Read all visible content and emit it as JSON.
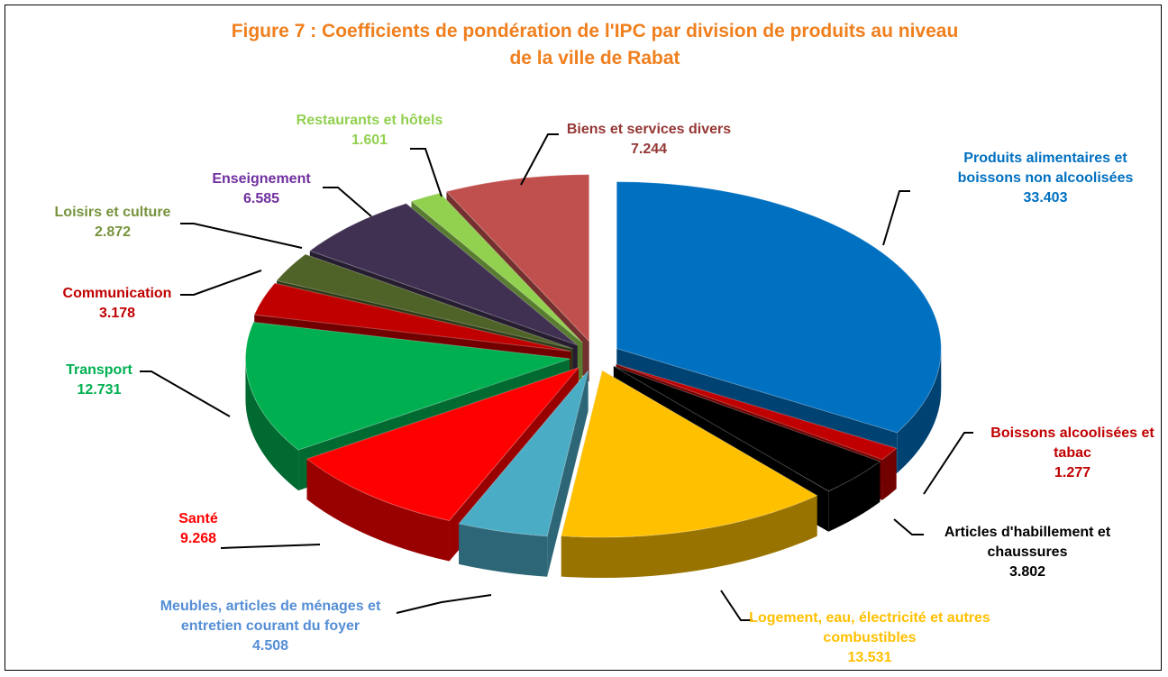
{
  "chart_data": {
    "type": "pie3d",
    "title": "Figure 7 : Coefficients de pondération de l'IPC par division de produits au niveau de la ville de Rabat",
    "categories": [
      "Produits alimentaires et boissons non alcoolisées",
      "Boissons alcoolisées et tabac",
      "Articles d'habillement et chaussures",
      "Logement, eau, électricité et autres combustibles",
      "Meubles, articles de ménages et entretien courant du foyer",
      "Santé",
      "Transport",
      "Communication",
      "Loisirs et culture",
      "Enseignement",
      "Restaurants et hôtels",
      "Biens et services divers"
    ],
    "values": [
      33.403,
      1.277,
      3.802,
      13.531,
      4.508,
      9.268,
      12.731,
      3.178,
      2.872,
      6.585,
      1.601,
      7.244
    ],
    "colors": [
      "#0070c0",
      "#c00000",
      "#000000",
      "#ffc000",
      "#4bacc6",
      "#ff0000",
      "#00b050",
      "#c00000",
      "#4f6228",
      "#403152",
      "#92d050",
      "#c0504d"
    ],
    "label_colors": [
      "#0070c0",
      "#c00000",
      "#000000",
      "#ffc000",
      "#558ed5",
      "#ff0000",
      "#00b050",
      "#c00000",
      "#77933c",
      "#7030a0",
      "#92d050",
      "#953735"
    ]
  }
}
